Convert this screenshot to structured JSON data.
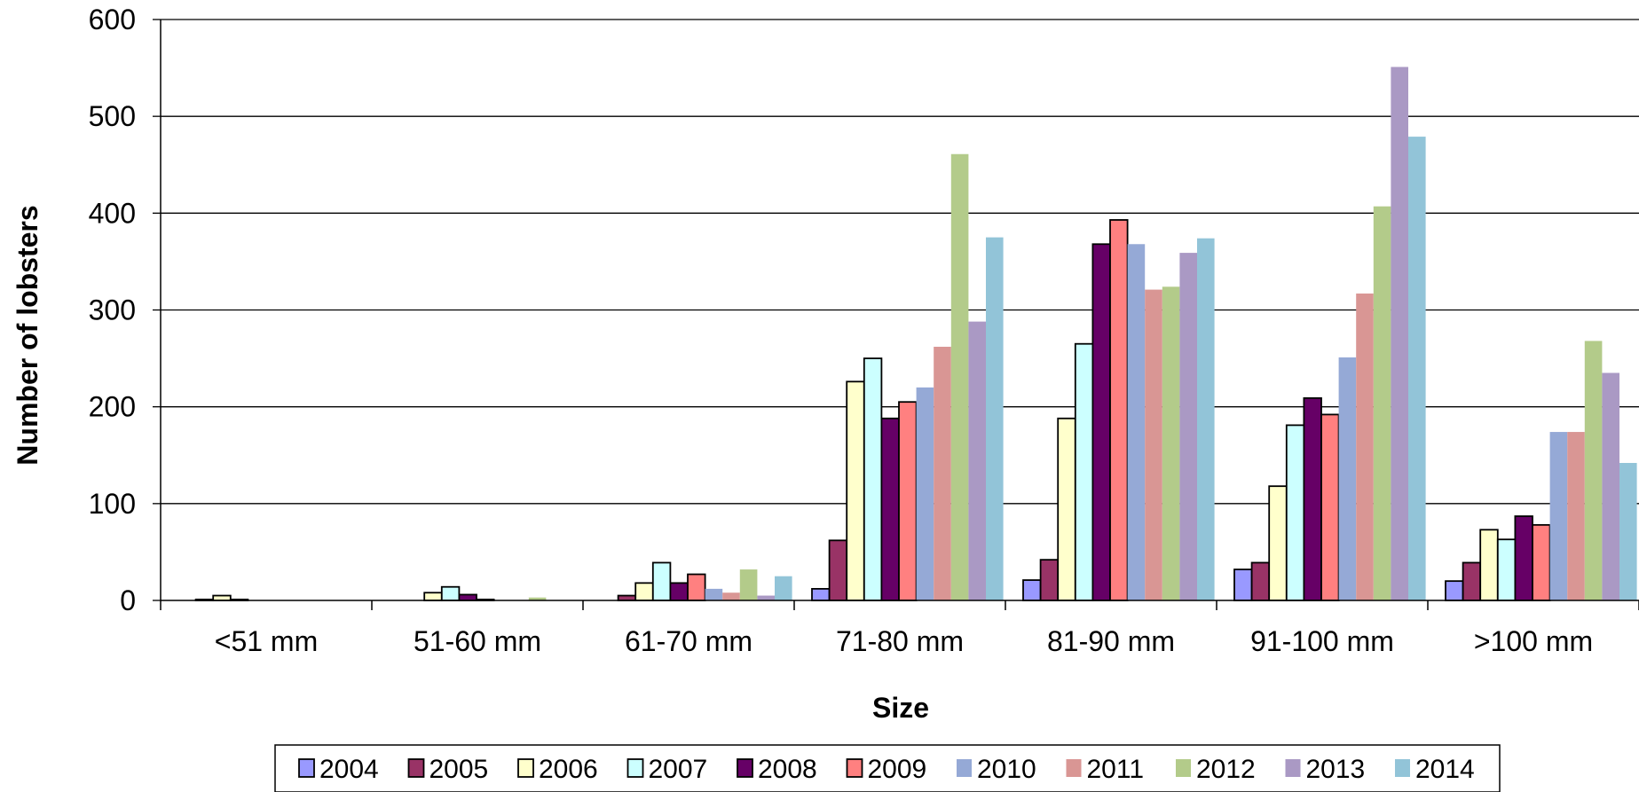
{
  "chart_data": {
    "type": "bar",
    "title": "",
    "xlabel": "Size",
    "ylabel": "Number of lobsters",
    "ylim": [
      0,
      600
    ],
    "yticks": [
      0,
      100,
      200,
      300,
      400,
      500,
      600
    ],
    "grid": true,
    "legend_position": "bottom",
    "categories": [
      "<51 mm",
      "51-60 mm",
      "61-70 mm",
      "71-80 mm",
      "81-90 mm",
      "91-100 mm",
      ">100 mm"
    ],
    "series": [
      {
        "name": "2004",
        "color": "#9999FF",
        "outline": true,
        "values": [
          0,
          0,
          0,
          12,
          21,
          32,
          20
        ]
      },
      {
        "name": "2005",
        "color": "#993366",
        "outline": true,
        "values": [
          1,
          0,
          5,
          62,
          42,
          39,
          39
        ]
      },
      {
        "name": "2006",
        "color": "#FFFFCC",
        "outline": true,
        "values": [
          5,
          8,
          18,
          226,
          188,
          118,
          73
        ]
      },
      {
        "name": "2007",
        "color": "#CCFFFF",
        "outline": true,
        "values": [
          1,
          14,
          39,
          250,
          265,
          181,
          63
        ]
      },
      {
        "name": "2008",
        "color": "#660066",
        "outline": true,
        "values": [
          0,
          6,
          18,
          188,
          368,
          209,
          87
        ]
      },
      {
        "name": "2009",
        "color": "#FF8080",
        "outline": true,
        "values": [
          0,
          1,
          27,
          205,
          393,
          192,
          78
        ]
      },
      {
        "name": "2010",
        "color": "#95A9D6",
        "outline": false,
        "values": [
          0,
          0,
          12,
          220,
          368,
          251,
          174
        ]
      },
      {
        "name": "2011",
        "color": "#D99694",
        "outline": false,
        "values": [
          0,
          0,
          8,
          262,
          321,
          317,
          174
        ]
      },
      {
        "name": "2012",
        "color": "#B3CB8A",
        "outline": false,
        "values": [
          0,
          3,
          32,
          461,
          324,
          407,
          268
        ]
      },
      {
        "name": "2013",
        "color": "#AA99C4",
        "outline": false,
        "values": [
          0,
          0,
          5,
          288,
          359,
          551,
          235
        ]
      },
      {
        "name": "2014",
        "color": "#92C4D8",
        "outline": false,
        "values": [
          0,
          0,
          25,
          375,
          374,
          479,
          142
        ]
      }
    ]
  }
}
